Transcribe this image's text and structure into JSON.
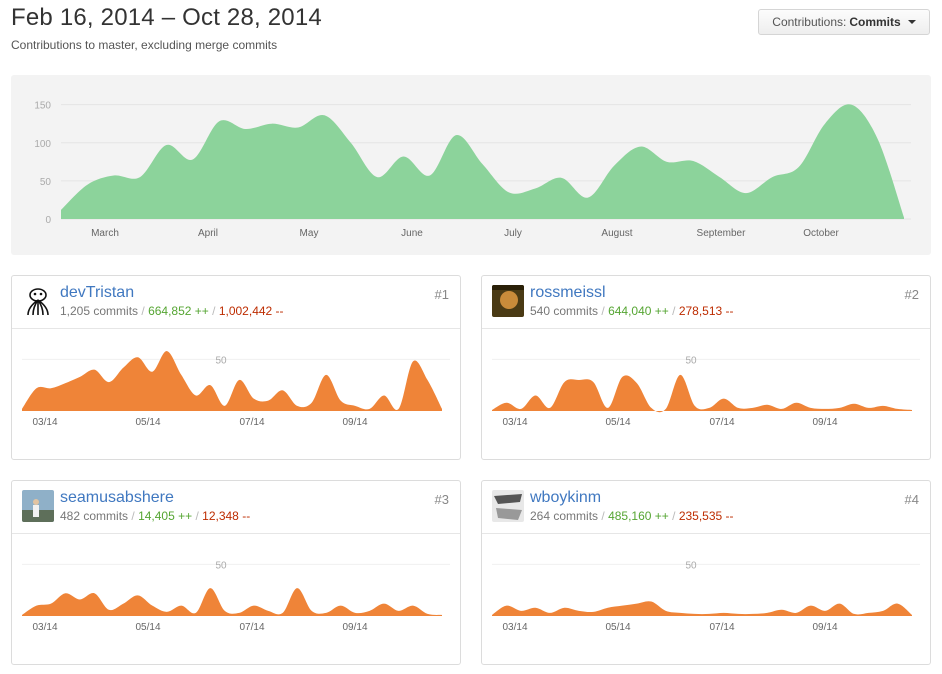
{
  "header": {
    "range_title": "Feb 16, 2014 – Oct 28, 2014",
    "subtitle": "Contributions to master, excluding merge commits",
    "select_prefix": "Contributions:",
    "select_value": "Commits"
  },
  "chart_data": [
    {
      "type": "area",
      "title": "",
      "x_labels": [
        "March",
        "April",
        "May",
        "June",
        "July",
        "August",
        "September",
        "October"
      ],
      "y_ticks": [
        0,
        50,
        100,
        150
      ],
      "ylim": [
        0,
        160
      ],
      "grid": true,
      "color": "#8cd39b",
      "values": [
        12,
        45,
        57,
        55,
        97,
        78,
        128,
        118,
        125,
        120,
        136,
        100,
        55,
        82,
        57,
        110,
        72,
        35,
        40,
        54,
        28,
        70,
        95,
        75,
        76,
        55,
        34,
        55,
        68,
        125,
        150,
        105,
        2
      ]
    },
    {
      "type": "area",
      "x_labels": [
        "03/14",
        "05/14",
        "07/14",
        "09/14"
      ],
      "y_ticks": [
        50
      ],
      "color": "#ef8438",
      "values": [
        2,
        22,
        22,
        27,
        33,
        40,
        28,
        42,
        52,
        38,
        58,
        35,
        15,
        25,
        5,
        30,
        12,
        10,
        20,
        5,
        8,
        35,
        10,
        5,
        2,
        15,
        2,
        48,
        30,
        2
      ]
    },
    {
      "type": "area",
      "x_labels": [
        "03/14",
        "05/14",
        "07/14",
        "09/14"
      ],
      "y_ticks": [
        50
      ],
      "color": "#ef8438",
      "values": [
        1,
        8,
        2,
        15,
        3,
        28,
        30,
        28,
        3,
        33,
        27,
        3,
        2,
        35,
        5,
        3,
        12,
        3,
        3,
        6,
        2,
        8,
        3,
        2,
        3,
        7,
        3,
        5,
        2,
        1
      ]
    },
    {
      "type": "area",
      "x_labels": [
        "03/14",
        "05/14",
        "07/14",
        "09/14"
      ],
      "y_ticks": [
        50
      ],
      "color": "#ef8438",
      "values": [
        1,
        10,
        12,
        22,
        16,
        22,
        6,
        12,
        20,
        10,
        4,
        10,
        3,
        27,
        5,
        3,
        10,
        5,
        3,
        27,
        5,
        3,
        10,
        3,
        5,
        12,
        5,
        10,
        2,
        1
      ]
    },
    {
      "type": "area",
      "x_labels": [
        "03/14",
        "05/14",
        "07/14",
        "09/14"
      ],
      "y_ticks": [
        50
      ],
      "color": "#ef8438",
      "values": [
        1,
        10,
        5,
        8,
        3,
        8,
        5,
        4,
        8,
        10,
        12,
        14,
        5,
        3,
        2,
        2,
        3,
        2,
        2,
        3,
        6,
        3,
        10,
        5,
        12,
        2,
        3,
        5,
        12,
        1
      ]
    }
  ],
  "contributors": [
    {
      "login": "devTristan",
      "commits": "1,205 commits",
      "additions": "664,852 ++",
      "deletions": "1,002,442 --",
      "rank": "#1",
      "avatar": "octopus-icon"
    },
    {
      "login": "rossmeissl",
      "commits": "540 commits",
      "additions": "644,040 ++",
      "deletions": "278,513 --",
      "rank": "#2",
      "avatar": "portrait-icon"
    },
    {
      "login": "seamusabshere",
      "commits": "482 commits",
      "additions": "14,405 ++",
      "deletions": "12,348 --",
      "rank": "#3",
      "avatar": "portrait-icon"
    },
    {
      "login": "wboykinm",
      "commits": "264 commits",
      "additions": "485,160 ++",
      "deletions": "235,535 --",
      "rank": "#4",
      "avatar": "portrait-icon"
    }
  ],
  "separator": "/"
}
